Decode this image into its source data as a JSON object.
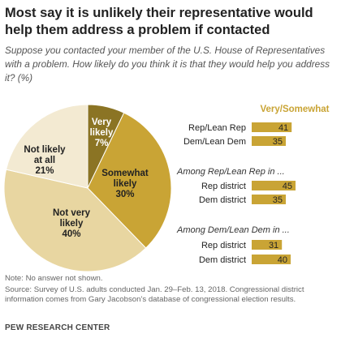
{
  "header": {
    "title": "Most say it is unlikely their representative would help them address a problem if contacted",
    "subtitle": "Suppose you contacted your member of the U.S. House of Representatives with a problem. How likely do you think it is that they would help you address it? (%)"
  },
  "colors": {
    "very_likely": "#8b7424",
    "somewhat_likely": "#c9a435",
    "not_very_likely": "#e8d6a1",
    "not_likely_at_all": "#f3ead2",
    "bar": "#c9a435",
    "heading": "#c9a435"
  },
  "chart_data": [
    {
      "type": "pie",
      "slices": [
        {
          "label_lines": [
            "Very",
            "likely",
            "7%"
          ],
          "value": 7,
          "color": "#8b7424",
          "text_color": "#ffffff"
        },
        {
          "label_lines": [
            "Somewhat",
            "likely",
            "30%"
          ],
          "value": 30,
          "color": "#c9a435",
          "text_color": "#222222"
        },
        {
          "label_lines": [
            "Not very",
            "likely",
            "40%"
          ],
          "value": 40,
          "color": "#e8d6a1",
          "text_color": "#222222"
        },
        {
          "label_lines": [
            "Not likely",
            "at all",
            "21%"
          ],
          "value": 21,
          "color": "#f3ead2",
          "text_color": "#222222"
        }
      ]
    },
    {
      "type": "bar",
      "value_header": "Very/Somewhat",
      "groups": [
        {
          "heading": "",
          "rows": [
            {
              "label": "Rep/Lean Rep",
              "value": 41
            },
            {
              "label": "Dem/Lean Dem",
              "value": 35
            }
          ]
        },
        {
          "heading": "Among Rep/Lean Rep in ...",
          "rows": [
            {
              "label": "Rep district",
              "value": 45
            },
            {
              "label": "Dem district",
              "value": 35
            }
          ]
        },
        {
          "heading": "Among Dem/Lean Dem in ...",
          "rows": [
            {
              "label": "Rep district",
              "value": 31
            },
            {
              "label": "Dem district",
              "value": 40
            }
          ]
        }
      ]
    }
  ],
  "footer": {
    "note": "Note: No answer not shown.",
    "source": "Source: Survey of U.S. adults conducted Jan. 29–Feb. 13, 2018. Congressional district information comes from Gary Jacobson’s database of congressional election results.",
    "brand": "PEW RESEARCH CENTER"
  }
}
